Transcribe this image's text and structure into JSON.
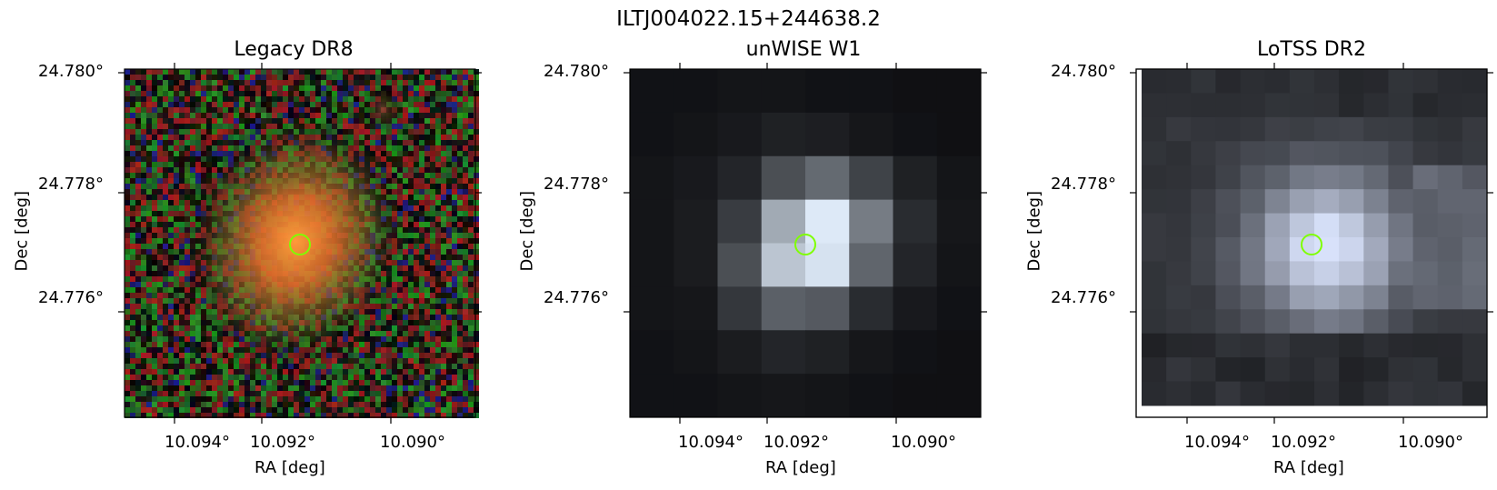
{
  "figure_title": "ILTJ004022.15+244638.2",
  "panels": [
    {
      "title": "Legacy DR8",
      "xlabel": "RA [deg]",
      "ylabel": "Dec [deg]",
      "xticks": [
        "10.094°",
        "10.092°",
        "10.090°"
      ],
      "yticks": [
        "24.780°",
        "24.778°",
        "24.776°"
      ],
      "image": "optical-rgb-cutout",
      "marker": "source-circle"
    },
    {
      "title": "unWISE W1",
      "xlabel": "RA [deg]",
      "ylabel": "Dec [deg]",
      "xticks": [
        "10.094°",
        "10.092°",
        "10.090°"
      ],
      "yticks": [
        "24.780°",
        "24.778°",
        "24.776°"
      ],
      "image": "infrared-grayscale-cutout",
      "marker": "source-circle"
    },
    {
      "title": "LoTSS DR2",
      "xlabel": "RA [deg]",
      "ylabel": "Dec [deg]",
      "xticks": [
        "10.094°",
        "10.092°",
        "10.090°"
      ],
      "yticks": [
        "24.780°",
        "24.778°",
        "24.776°"
      ],
      "image": "radio-grayscale-cutout",
      "marker": "source-circle"
    }
  ],
  "colors": {
    "marker": "#7fff00",
    "axis": "#000000"
  }
}
